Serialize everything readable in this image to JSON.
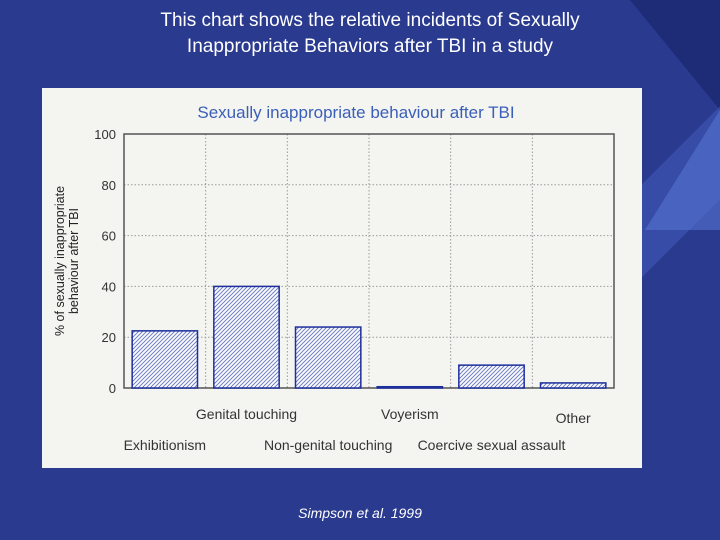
{
  "slide": {
    "title_line1": "This chart shows the relative incidents of Sexually",
    "title_line2": "Inappropriate Behaviors after TBI in a study",
    "citation": "Simpson et al. 1999"
  },
  "colors": {
    "background": "#2a3a8f",
    "chart_title": "#3a5fb8",
    "bar_edge": "#1d2f9a",
    "bar_hatch": "#6f7fc4"
  },
  "chart_data": {
    "type": "bar",
    "title": "Sexually inappropriate behaviour after TBI",
    "ylabel_line1": "% of sexually inappropriate",
    "ylabel_line2": "behaviour after TBI",
    "xlabel": "",
    "ylim": [
      0,
      100
    ],
    "yticks": [
      0,
      20,
      40,
      60,
      80,
      100
    ],
    "grid": true,
    "categories": [
      "Exhibitionism",
      "Genital touching",
      "Non-genital touching",
      "Voyerism",
      "Coercive sexual assault",
      "Other"
    ],
    "values": [
      22.5,
      40,
      24,
      0.5,
      9,
      2
    ]
  }
}
